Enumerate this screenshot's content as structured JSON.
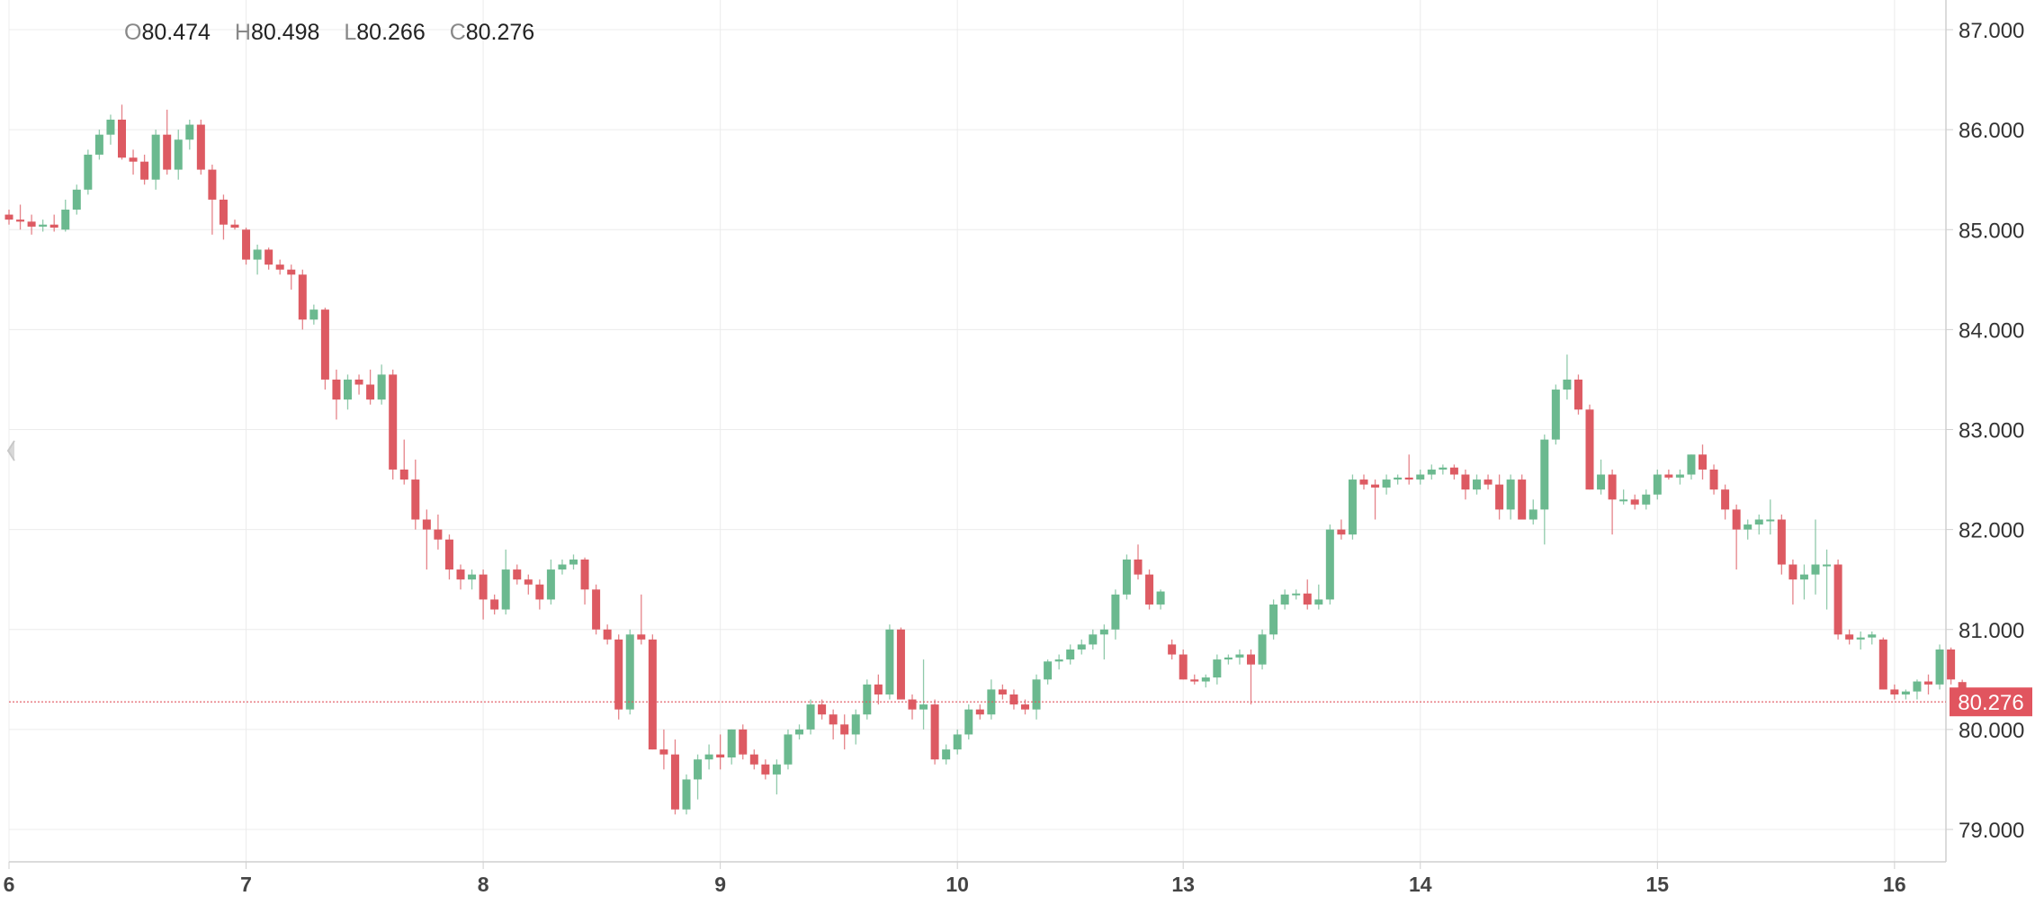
{
  "ohlc": {
    "o_label": "O",
    "o_value": "80.474",
    "h_label": "H",
    "h_value": "80.498",
    "l_label": "L",
    "l_value": "80.266",
    "c_label": "C",
    "c_value": "80.276"
  },
  "colors": {
    "up": "#6bb98f",
    "down": "#dd5a62",
    "grid": "#ececec",
    "axis": "#cfcfcf",
    "price_line": "#e1555f"
  },
  "chart_data": {
    "type": "candlestick",
    "title": "",
    "xlabel": "",
    "ylabel": "",
    "ylim": [
      78.7,
      87.3
    ],
    "y_ticks": [
      "79.000",
      "80.000",
      "81.000",
      "82.000",
      "83.000",
      "84.000",
      "85.000",
      "86.000",
      "87.000"
    ],
    "x_ticks": [
      {
        "label": "6",
        "index": 0
      },
      {
        "label": "7",
        "index": 21
      },
      {
        "label": "8",
        "index": 42
      },
      {
        "label": "9",
        "index": 63
      },
      {
        "label": "10",
        "index": 84
      },
      {
        "label": "13",
        "index": 104
      },
      {
        "label": "14",
        "index": 125
      },
      {
        "label": "15",
        "index": 146
      },
      {
        "label": "16",
        "index": 167
      }
    ],
    "last_price_label": "80.276",
    "last_price": 80.276,
    "candles": [
      [
        85.15,
        85.2,
        85.05,
        85.1
      ],
      [
        85.1,
        85.25,
        85.0,
        85.08
      ],
      [
        85.08,
        85.15,
        84.95,
        85.03
      ],
      [
        85.03,
        85.1,
        84.98,
        85.05
      ],
      [
        85.05,
        85.15,
        84.98,
        85.02
      ],
      [
        85.0,
        85.3,
        84.98,
        85.2
      ],
      [
        85.2,
        85.45,
        85.15,
        85.4
      ],
      [
        85.4,
        85.8,
        85.35,
        85.75
      ],
      [
        85.75,
        86.0,
        85.7,
        85.95
      ],
      [
        85.95,
        86.15,
        85.85,
        86.1
      ],
      [
        86.1,
        86.25,
        85.7,
        85.72
      ],
      [
        85.72,
        85.8,
        85.55,
        85.68
      ],
      [
        85.68,
        85.75,
        85.45,
        85.5
      ],
      [
        85.5,
        86.0,
        85.4,
        85.95
      ],
      [
        85.95,
        86.2,
        85.55,
        85.6
      ],
      [
        85.6,
        86.0,
        85.5,
        85.9
      ],
      [
        85.9,
        86.1,
        85.8,
        86.05
      ],
      [
        86.05,
        86.1,
        85.55,
        85.6
      ],
      [
        85.6,
        85.65,
        84.95,
        85.3
      ],
      [
        85.3,
        85.35,
        84.9,
        85.05
      ],
      [
        85.05,
        85.1,
        85.0,
        85.02
      ],
      [
        85.0,
        85.02,
        84.65,
        84.7
      ],
      [
        84.7,
        84.85,
        84.55,
        84.8
      ],
      [
        84.8,
        84.82,
        84.6,
        84.65
      ],
      [
        84.65,
        84.7,
        84.55,
        84.6
      ],
      [
        84.6,
        84.65,
        84.4,
        84.55
      ],
      [
        84.55,
        84.6,
        84.0,
        84.1
      ],
      [
        84.1,
        84.25,
        84.05,
        84.2
      ],
      [
        84.2,
        84.22,
        83.4,
        83.5
      ],
      [
        83.5,
        83.6,
        83.1,
        83.3
      ],
      [
        83.3,
        83.55,
        83.2,
        83.5
      ],
      [
        83.5,
        83.55,
        83.35,
        83.45
      ],
      [
        83.45,
        83.6,
        83.25,
        83.3
      ],
      [
        83.3,
        83.65,
        83.25,
        83.55
      ],
      [
        83.55,
        83.6,
        82.5,
        82.6
      ],
      [
        82.6,
        82.9,
        82.45,
        82.5
      ],
      [
        82.5,
        82.7,
        82.0,
        82.1
      ],
      [
        82.1,
        82.2,
        81.6,
        82.0
      ],
      [
        82.0,
        82.15,
        81.8,
        81.9
      ],
      [
        81.9,
        81.95,
        81.5,
        81.6
      ],
      [
        81.6,
        81.65,
        81.4,
        81.5
      ],
      [
        81.5,
        81.6,
        81.4,
        81.55
      ],
      [
        81.55,
        81.6,
        81.1,
        81.3
      ],
      [
        81.3,
        81.35,
        81.15,
        81.2
      ],
      [
        81.2,
        81.8,
        81.15,
        81.6
      ],
      [
        81.6,
        81.65,
        81.45,
        81.5
      ],
      [
        81.5,
        81.55,
        81.35,
        81.45
      ],
      [
        81.45,
        81.5,
        81.2,
        81.3
      ],
      [
        81.3,
        81.7,
        81.25,
        81.6
      ],
      [
        81.6,
        81.7,
        81.55,
        81.65
      ],
      [
        81.65,
        81.75,
        81.6,
        81.7
      ],
      [
        81.7,
        81.72,
        81.25,
        81.4
      ],
      [
        81.4,
        81.45,
        80.95,
        81.0
      ],
      [
        81.0,
        81.05,
        80.85,
        80.9
      ],
      [
        80.9,
        80.95,
        80.1,
        80.2
      ],
      [
        80.2,
        81.0,
        80.15,
        80.95
      ],
      [
        80.95,
        81.35,
        80.85,
        80.9
      ],
      [
        80.9,
        80.95,
        79.8,
        79.8
      ],
      [
        79.8,
        80.0,
        79.6,
        79.75
      ],
      [
        79.75,
        79.9,
        79.15,
        79.2
      ],
      [
        79.2,
        79.55,
        79.15,
        79.5
      ],
      [
        79.5,
        79.75,
        79.3,
        79.7
      ],
      [
        79.7,
        79.85,
        79.6,
        79.75
      ],
      [
        79.75,
        79.95,
        79.6,
        79.72
      ],
      [
        79.72,
        80.0,
        79.65,
        80.0
      ],
      [
        80.0,
        80.05,
        79.7,
        79.75
      ],
      [
        79.75,
        79.8,
        79.6,
        79.65
      ],
      [
        79.65,
        79.7,
        79.5,
        79.55
      ],
      [
        79.55,
        79.7,
        79.35,
        79.65
      ],
      [
        79.65,
        80.0,
        79.6,
        79.95
      ],
      [
        79.95,
        80.05,
        79.9,
        80.0
      ],
      [
        80.0,
        80.3,
        79.95,
        80.25
      ],
      [
        80.25,
        80.3,
        80.1,
        80.15
      ],
      [
        80.15,
        80.2,
        79.9,
        80.05
      ],
      [
        80.05,
        80.15,
        79.8,
        79.95
      ],
      [
        79.95,
        80.2,
        79.85,
        80.15
      ],
      [
        80.15,
        80.5,
        80.1,
        80.45
      ],
      [
        80.45,
        80.55,
        80.25,
        80.35
      ],
      [
        80.35,
        81.05,
        80.3,
        81.0
      ],
      [
        81.0,
        81.02,
        80.3,
        80.3
      ],
      [
        80.3,
        80.35,
        80.1,
        80.2
      ],
      [
        80.2,
        80.7,
        80.0,
        80.25
      ],
      [
        80.25,
        80.3,
        79.65,
        79.7
      ],
      [
        79.7,
        79.85,
        79.65,
        79.8
      ],
      [
        79.8,
        80.0,
        79.75,
        79.95
      ],
      [
        79.95,
        80.25,
        79.9,
        80.2
      ],
      [
        80.2,
        80.25,
        80.1,
        80.15
      ],
      [
        80.15,
        80.5,
        80.1,
        80.4
      ],
      [
        80.4,
        80.45,
        80.3,
        80.35
      ],
      [
        80.35,
        80.4,
        80.2,
        80.25
      ],
      [
        80.25,
        80.3,
        80.15,
        80.2
      ],
      [
        80.2,
        80.55,
        80.1,
        80.5
      ],
      [
        80.5,
        80.7,
        80.45,
        80.68
      ],
      [
        80.68,
        80.75,
        80.6,
        80.7
      ],
      [
        80.7,
        80.85,
        80.65,
        80.8
      ],
      [
        80.8,
        80.9,
        80.75,
        80.85
      ],
      [
        80.85,
        81.0,
        80.8,
        80.95
      ],
      [
        80.95,
        81.05,
        80.7,
        81.0
      ],
      [
        81.0,
        81.4,
        80.9,
        81.35
      ],
      [
        81.35,
        81.75,
        81.3,
        81.7
      ],
      [
        81.7,
        81.85,
        81.5,
        81.55
      ],
      [
        81.55,
        81.6,
        81.2,
        81.25
      ],
      [
        81.25,
        81.4,
        81.2,
        81.38
      ],
      [
        80.85,
        80.9,
        80.7,
        80.75
      ],
      [
        80.75,
        80.8,
        80.5,
        80.5
      ],
      [
        80.5,
        80.55,
        80.45,
        80.48
      ],
      [
        80.48,
        80.55,
        80.42,
        80.52
      ],
      [
        80.52,
        80.75,
        80.45,
        80.7
      ],
      [
        80.7,
        80.75,
        80.65,
        80.72
      ],
      [
        80.72,
        80.8,
        80.65,
        80.75
      ],
      [
        80.75,
        80.8,
        80.25,
        80.65
      ],
      [
        80.65,
        81.0,
        80.6,
        80.95
      ],
      [
        80.95,
        81.3,
        80.9,
        81.25
      ],
      [
        81.25,
        81.4,
        81.2,
        81.35
      ],
      [
        81.35,
        81.4,
        81.3,
        81.36
      ],
      [
        81.36,
        81.5,
        81.2,
        81.25
      ],
      [
        81.25,
        81.45,
        81.2,
        81.3
      ],
      [
        81.3,
        82.05,
        81.25,
        82.0
      ],
      [
        82.0,
        82.1,
        81.9,
        81.95
      ],
      [
        81.95,
        82.55,
        81.9,
        82.5
      ],
      [
        82.5,
        82.55,
        82.4,
        82.45
      ],
      [
        82.45,
        82.5,
        82.1,
        82.42
      ],
      [
        82.42,
        82.55,
        82.35,
        82.5
      ],
      [
        82.5,
        82.55,
        82.45,
        82.52
      ],
      [
        82.52,
        82.75,
        82.45,
        82.5
      ],
      [
        82.5,
        82.6,
        82.45,
        82.55
      ],
      [
        82.55,
        82.65,
        82.5,
        82.6
      ],
      [
        82.6,
        82.65,
        82.55,
        82.62
      ],
      [
        82.62,
        82.65,
        82.5,
        82.55
      ],
      [
        82.55,
        82.6,
        82.3,
        82.4
      ],
      [
        82.4,
        82.55,
        82.35,
        82.5
      ],
      [
        82.5,
        82.55,
        82.4,
        82.45
      ],
      [
        82.45,
        82.55,
        82.1,
        82.2
      ],
      [
        82.2,
        82.55,
        82.1,
        82.5
      ],
      [
        82.5,
        82.55,
        82.1,
        82.1
      ],
      [
        82.1,
        82.3,
        82.05,
        82.2
      ],
      [
        82.2,
        82.95,
        81.85,
        82.9
      ],
      [
        82.9,
        83.45,
        82.85,
        83.4
      ],
      [
        83.4,
        83.75,
        83.3,
        83.5
      ],
      [
        83.5,
        83.55,
        83.15,
        83.2
      ],
      [
        83.2,
        83.25,
        82.4,
        82.4
      ],
      [
        82.4,
        82.7,
        82.35,
        82.55
      ],
      [
        82.55,
        82.6,
        81.95,
        82.3
      ],
      [
        82.3,
        82.4,
        82.25,
        82.3
      ],
      [
        82.3,
        82.35,
        82.2,
        82.25
      ],
      [
        82.25,
        82.4,
        82.2,
        82.35
      ],
      [
        82.35,
        82.6,
        82.3,
        82.55
      ],
      [
        82.55,
        82.6,
        82.5,
        82.52
      ],
      [
        82.52,
        82.6,
        82.45,
        82.55
      ],
      [
        82.55,
        82.75,
        82.5,
        82.75
      ],
      [
        82.75,
        82.85,
        82.5,
        82.6
      ],
      [
        82.6,
        82.65,
        82.35,
        82.4
      ],
      [
        82.4,
        82.45,
        82.1,
        82.2
      ],
      [
        82.2,
        82.25,
        81.6,
        82.0
      ],
      [
        82.0,
        82.1,
        81.9,
        82.05
      ],
      [
        82.05,
        82.15,
        81.95,
        82.1
      ],
      [
        82.1,
        82.3,
        81.95,
        82.1
      ],
      [
        82.1,
        82.15,
        81.55,
        81.65
      ],
      [
        81.65,
        81.7,
        81.25,
        81.5
      ],
      [
        81.5,
        81.65,
        81.3,
        81.55
      ],
      [
        81.55,
        82.1,
        81.35,
        81.65
      ],
      [
        81.65,
        81.8,
        81.2,
        81.65
      ],
      [
        81.65,
        81.7,
        80.9,
        80.95
      ],
      [
        80.95,
        81.0,
        80.85,
        80.9
      ],
      [
        80.9,
        80.98,
        80.8,
        80.92
      ],
      [
        80.92,
        80.98,
        80.85,
        80.95
      ],
      [
        80.9,
        80.92,
        80.4,
        80.4
      ],
      [
        80.4,
        80.45,
        80.3,
        80.35
      ],
      [
        80.35,
        80.4,
        80.3,
        80.38
      ],
      [
        80.38,
        80.5,
        80.3,
        80.48
      ],
      [
        80.48,
        80.55,
        80.35,
        80.45
      ],
      [
        80.45,
        80.85,
        80.4,
        80.8
      ],
      [
        80.8,
        80.82,
        80.45,
        80.5
      ],
      [
        80.474,
        80.498,
        80.266,
        80.276
      ]
    ]
  }
}
